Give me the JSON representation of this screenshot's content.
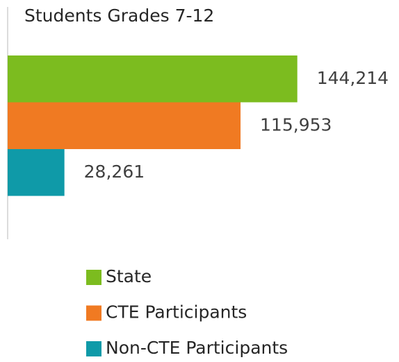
{
  "chart_data": {
    "type": "bar",
    "orientation": "horizontal",
    "title": "Students Grades 7-12",
    "series": [
      {
        "name": "State",
        "color": "#7cbc1f",
        "values": [
          144214
        ],
        "value_labels": [
          "144,214"
        ]
      },
      {
        "name": "CTE Participants",
        "color": "#f07a22",
        "values": [
          115953
        ],
        "value_labels": [
          "115,953"
        ]
      },
      {
        "name": "Non-CTE Participants",
        "color": "#0f9aa8",
        "values": [
          28261
        ],
        "value_labels": [
          "28,261"
        ]
      }
    ],
    "xlim": [
      0,
      190000
    ],
    "legend": "bottom"
  }
}
